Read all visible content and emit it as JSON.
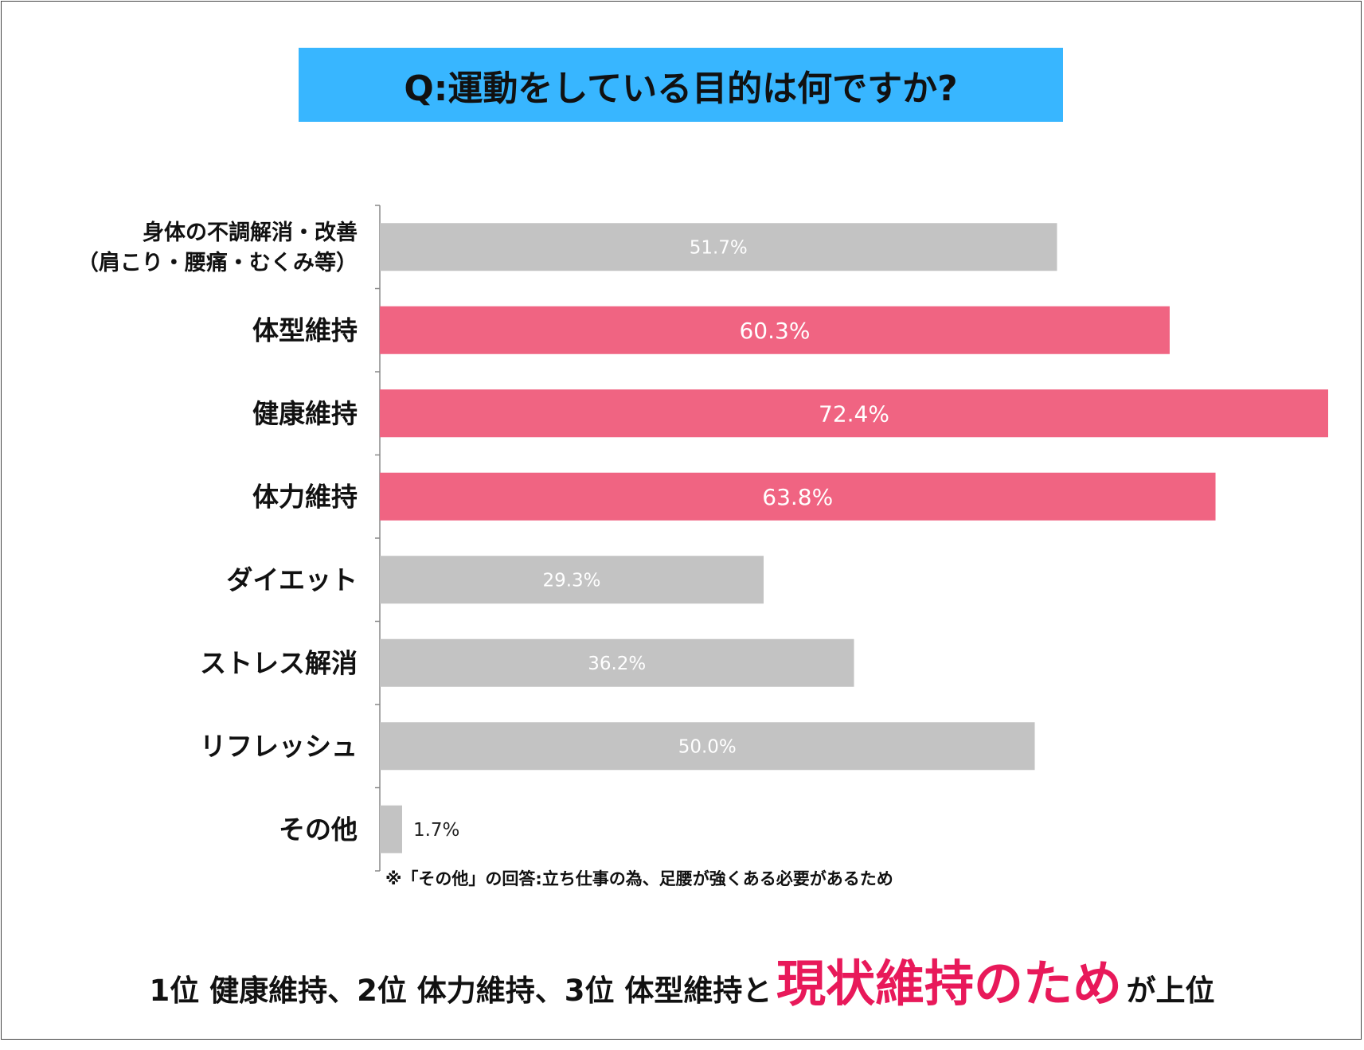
{
  "title": "Q:運動をしている目的は何ですか?",
  "colors": {
    "title_bg": "#38b6ff",
    "highlight_bar": "#f06482",
    "normal_bar": "#c3c3c3",
    "emphasis_text": "#e8195a"
  },
  "chart_data": {
    "type": "bar",
    "orientation": "horizontal",
    "unit": "%",
    "categories": [
      [
        "身体の不調解消・改善",
        "（肩こり・腰痛・むくみ等）"
      ],
      [
        "体型維持"
      ],
      [
        "健康維持"
      ],
      [
        "体力維持"
      ],
      [
        "ダイエット"
      ],
      [
        "ストレス解消"
      ],
      [
        "リフレッシュ"
      ],
      [
        "その他"
      ]
    ],
    "values": [
      51.7,
      60.3,
      72.4,
      63.8,
      29.3,
      36.2,
      50.0,
      1.7
    ],
    "value_labels": [
      "51.7%",
      "60.3%",
      "72.4%",
      "63.8%",
      "29.3%",
      "36.2%",
      "50.0%",
      "1.7%"
    ],
    "highlighted": [
      false,
      true,
      true,
      true,
      false,
      false,
      false,
      false
    ],
    "xlim": [
      0,
      72.4
    ],
    "grid": false,
    "legend": "none"
  },
  "note": "※「その他」の回答:立ち仕事の為、足腰が強くある必要があるため",
  "summary": {
    "part1": "1位 健康維持、2位 体力維持、3位 体型維持と",
    "emphasis": "現状維持のため",
    "part2": "が上位"
  }
}
